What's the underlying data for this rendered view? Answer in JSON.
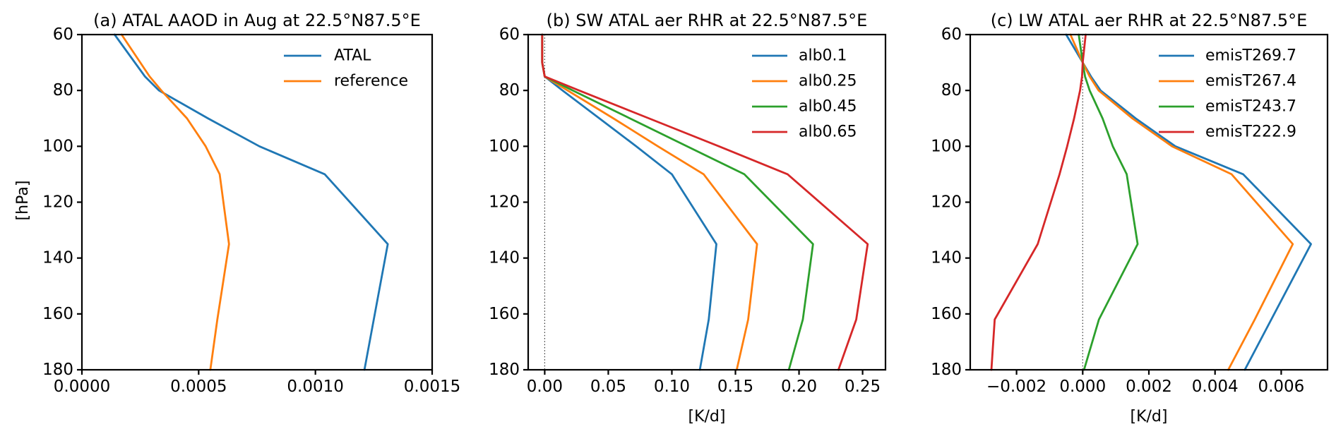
{
  "figure": {
    "background": "#ffffff",
    "text_color": "#000000",
    "ylabel": "[hPa]",
    "yticks": [
      60,
      80,
      100,
      120,
      140,
      160,
      180
    ],
    "ylim": [
      60,
      180
    ],
    "y_axis_inverted": true
  },
  "chart_data": [
    {
      "type": "line",
      "panel": "a",
      "title": "(a) ATAL AAOD in Aug at 22.5°N87.5°E",
      "xlabel": "",
      "ylabel": "[hPa]",
      "xlim": [
        0.0,
        0.0015
      ],
      "xticks": {
        "values": [
          0.0,
          0.0005,
          0.001,
          0.0015
        ],
        "labels": [
          "0.0000",
          "0.0005",
          "0.0010",
          "0.0015"
        ]
      },
      "yticks": [
        60,
        80,
        100,
        120,
        140,
        160,
        180
      ],
      "zero_line": false,
      "grid": false,
      "legend_position": "upper right",
      "levels_hpa": [
        60,
        75,
        80,
        90,
        100,
        110,
        135,
        162,
        180
      ],
      "series": [
        {
          "name": "ATAL",
          "color": "#1f77b4",
          "values": [
            0.00014,
            0.00027,
            0.00033,
            0.00054,
            0.00076,
            0.00104,
            0.00131,
            0.00125,
            0.00121
          ]
        },
        {
          "name": "reference",
          "color": "#ff7f0e",
          "values": [
            0.00017,
            0.00029,
            0.00034,
            0.00045,
            0.00053,
            0.00059,
            0.00063,
            0.00058,
            0.00055
          ]
        }
      ]
    },
    {
      "type": "line",
      "panel": "b",
      "title": "(b) SW ATAL aer RHR at 22.5°N87.5°E",
      "xlabel": "[K/d]",
      "ylabel": "",
      "xlim": [
        -0.013,
        0.268
      ],
      "xticks": {
        "values": [
          0.0,
          0.05,
          0.1,
          0.15,
          0.2,
          0.25
        ],
        "labels": [
          "0.00",
          "0.05",
          "0.10",
          "0.15",
          "0.20",
          "0.25"
        ]
      },
      "yticks": [
        60,
        80,
        100,
        120,
        140,
        160,
        180
      ],
      "zero_line": true,
      "grid": false,
      "legend_position": "upper right",
      "levels_hpa": [
        60,
        70,
        75,
        80,
        90,
        100,
        110,
        135,
        162,
        180
      ],
      "series": [
        {
          "name": "alb0.1",
          "color": "#1f77b4",
          "values": [
            -0.002,
            -0.002,
            0.0,
            0.014,
            0.043,
            0.072,
            0.1,
            0.135,
            0.129,
            0.122
          ]
        },
        {
          "name": "alb0.25",
          "color": "#ff7f0e",
          "values": [
            -0.002,
            -0.002,
            0.0,
            0.018,
            0.054,
            0.089,
            0.125,
            0.167,
            0.16,
            0.151
          ]
        },
        {
          "name": "alb0.45",
          "color": "#2ca02c",
          "values": [
            -0.002,
            -0.002,
            0.0,
            0.022,
            0.067,
            0.112,
            0.157,
            0.211,
            0.203,
            0.192
          ]
        },
        {
          "name": "alb0.65",
          "color": "#d62728",
          "values": [
            -0.002,
            -0.002,
            0.0,
            0.027,
            0.082,
            0.137,
            0.191,
            0.254,
            0.245,
            0.231
          ]
        }
      ]
    },
    {
      "type": "line",
      "panel": "c",
      "title": "(c) LW ATAL aer RHR at 22.5°N87.5°E",
      "xlabel": "[K/d]",
      "ylabel": "",
      "xlim": [
        -0.0034,
        0.0074
      ],
      "xticks": {
        "values": [
          -0.002,
          0.0,
          0.002,
          0.004,
          0.006
        ],
        "labels": [
          "−0.002",
          "0.000",
          "0.002",
          "0.004",
          "0.006"
        ]
      },
      "yticks": [
        60,
        80,
        100,
        120,
        140,
        160,
        180
      ],
      "zero_line": true,
      "grid": false,
      "legend_position": "upper right",
      "levels_hpa": [
        60,
        70,
        75,
        80,
        90,
        100,
        110,
        135,
        162,
        180
      ],
      "series": [
        {
          "name": "emisT269.7",
          "color": "#1f77b4",
          "values": [
            -0.0005,
            0.0,
            0.00025,
            0.00054,
            0.0016,
            0.0028,
            0.00485,
            0.0069,
            0.0057,
            0.0049
          ]
        },
        {
          "name": "emisT267.4",
          "color": "#ff7f0e",
          "values": [
            -0.00037,
            0.0,
            0.00021,
            0.00048,
            0.0015,
            0.0027,
            0.0045,
            0.00635,
            0.0052,
            0.0044
          ]
        },
        {
          "name": "emisT243.7",
          "color": "#2ca02c",
          "values": [
            -0.00012,
            0.0,
            7e-05,
            0.00021,
            0.0006,
            0.00091,
            0.00133,
            0.00166,
            0.00049,
            4e-05
          ]
        },
        {
          "name": "emisT222.9",
          "color": "#d62728",
          "values": [
            9e-05,
            0.0,
            -2e-05,
            -8e-05,
            -0.00026,
            -0.00047,
            -0.0007,
            -0.00136,
            -0.00266,
            -0.00276
          ]
        }
      ]
    }
  ]
}
